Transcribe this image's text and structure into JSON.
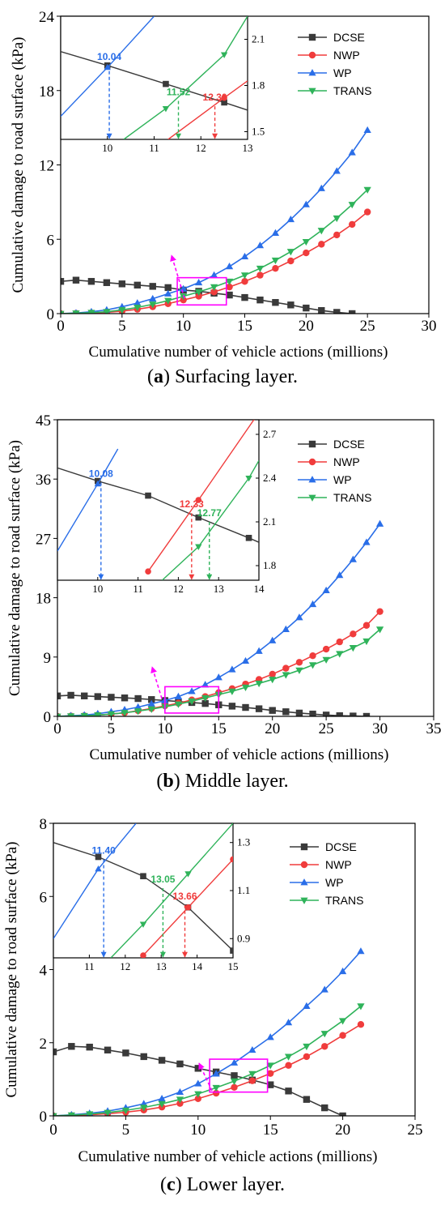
{
  "colors": {
    "DCSE": "#3a3a3a",
    "NWP": "#f03c3c",
    "WP": "#2a6ee8",
    "TRANS": "#2fb35a",
    "highlight": "#ff00ff"
  },
  "chart_data": [
    {
      "type": "line",
      "caption_letter": "a",
      "caption_text": "Surfacing layer.",
      "xlabel": "Cumulative number of vehicle actions (millions)",
      "ylabel": "Cumulative damage to road surface (kPa)",
      "xlim": [
        0,
        30
      ],
      "ylim": [
        0,
        24
      ],
      "xticks": [
        "0",
        "5",
        "10",
        "15",
        "20",
        "25",
        "30"
      ],
      "yticks": [
        "0",
        "6",
        "12",
        "18",
        "24"
      ],
      "legend": [
        "DCSE",
        "NWP",
        "WP",
        "TRANS"
      ],
      "series": [
        {
          "name": "DCSE",
          "marker": "square",
          "x": [
            0,
            1.25,
            2.5,
            3.75,
            5,
            6.25,
            7.5,
            8.75,
            10,
            11.25,
            12.5,
            13.75,
            15,
            16.25,
            17.5,
            18.75,
            20,
            21.25,
            22.5,
            23.75
          ],
          "y": [
            2.6,
            2.7,
            2.6,
            2.5,
            2.4,
            2.3,
            2.2,
            2.1,
            1.9,
            1.8,
            1.65,
            1.5,
            1.3,
            1.1,
            0.9,
            0.7,
            0.45,
            0.25,
            0.1,
            0.0
          ]
        },
        {
          "name": "NWP",
          "marker": "circle",
          "x": [
            0,
            1.25,
            2.5,
            3.75,
            5,
            6.25,
            7.5,
            8.75,
            10,
            11.25,
            12.5,
            13.75,
            15,
            16.25,
            17.5,
            18.75,
            20,
            21.25,
            22.5,
            23.75,
            25
          ],
          "y": [
            0.0,
            0.02,
            0.05,
            0.1,
            0.2,
            0.35,
            0.55,
            0.8,
            1.1,
            1.4,
            1.75,
            2.15,
            2.6,
            3.1,
            3.65,
            4.25,
            4.9,
            5.6,
            6.35,
            7.2,
            8.2
          ]
        },
        {
          "name": "WP",
          "marker": "triangle-up",
          "x": [
            0,
            1.25,
            2.5,
            3.75,
            5,
            6.25,
            7.5,
            8.75,
            10,
            11.25,
            12.5,
            13.75,
            15,
            16.25,
            17.5,
            18.75,
            20,
            21.25,
            22.5,
            23.75,
            25
          ],
          "y": [
            0.0,
            0.05,
            0.15,
            0.3,
            0.55,
            0.85,
            1.2,
            1.6,
            2.0,
            2.5,
            3.1,
            3.8,
            4.6,
            5.5,
            6.5,
            7.6,
            8.8,
            10.1,
            11.5,
            13.0,
            14.8
          ]
        },
        {
          "name": "TRANS",
          "marker": "triangle-down",
          "x": [
            0,
            1.25,
            2.5,
            3.75,
            5,
            6.25,
            7.5,
            8.75,
            10,
            11.25,
            12.5,
            13.75,
            15,
            16.25,
            17.5,
            18.75,
            20,
            21.25,
            22.5,
            23.75,
            25
          ],
          "y": [
            0.0,
            0.03,
            0.08,
            0.15,
            0.3,
            0.5,
            0.75,
            1.05,
            1.4,
            1.75,
            2.15,
            2.6,
            3.1,
            3.65,
            4.3,
            5.0,
            5.8,
            6.7,
            7.7,
            8.8,
            10.0
          ]
        }
      ],
      "highlight_box": {
        "x": [
          9.5,
          13.5
        ],
        "y": [
          0.7,
          2.9
        ]
      },
      "inset": {
        "xlim": [
          9,
          13
        ],
        "ylim": [
          1.45,
          2.25
        ],
        "xticks": [
          "10",
          "11",
          "12",
          "13"
        ],
        "yticks": [
          "1.5",
          "1.8",
          "2.1"
        ],
        "series": [
          {
            "name": "DCSE",
            "x": [
              9,
              10,
              11.25,
              12.5,
              13
            ],
            "y": [
              2.02,
              1.93,
              1.81,
              1.69,
              1.64
            ],
            "marker_x": [
              10,
              11.25,
              12.5
            ]
          },
          {
            "name": "NWP",
            "x": [
              11.3,
              12.5,
              13
            ],
            "y": [
              1.45,
              1.72,
              1.83
            ],
            "marker_x": [
              12.5
            ]
          },
          {
            "name": "WP",
            "x": [
              9,
              10.04,
              11
            ],
            "y": [
              1.6,
              1.93,
              2.25
            ],
            "marker_x": [
              10
            ]
          },
          {
            "name": "TRANS",
            "x": [
              10.35,
              11.25,
              12.5,
              13
            ],
            "y": [
              1.45,
              1.65,
              2.0,
              2.25
            ],
            "marker_x": [
              11.25,
              12.5
            ]
          }
        ],
        "annotations": [
          {
            "text": "10.04",
            "x": 10.04,
            "y": 1.93,
            "color_key": "WP"
          },
          {
            "text": "11.52",
            "x": 11.52,
            "y": 1.7,
            "color_key": "TRANS"
          },
          {
            "text": "12.30",
            "x": 12.3,
            "y": 1.665,
            "color_key": "NWP"
          }
        ]
      }
    },
    {
      "type": "line",
      "caption_letter": "b",
      "caption_text": "Middle layer.",
      "xlabel": "Cumulative number of vehicle actions (millions)",
      "ylabel": "Cumulative damage to road surface (kPa)",
      "xlim": [
        0,
        35
      ],
      "ylim": [
        0,
        45
      ],
      "xticks": [
        "0",
        "5",
        "10",
        "15",
        "20",
        "25",
        "30",
        "35"
      ],
      "yticks": [
        "0",
        "9",
        "18",
        "27",
        "36",
        "45"
      ],
      "legend": [
        "DCSE",
        "NWP",
        "WP",
        "TRANS"
      ],
      "series": [
        {
          "name": "DCSE",
          "marker": "square",
          "x": [
            0,
            1.25,
            2.5,
            3.75,
            5,
            6.25,
            7.5,
            8.75,
            10,
            11.25,
            12.5,
            13.75,
            15,
            16.25,
            17.5,
            18.75,
            20,
            21.25,
            22.5,
            23.75,
            25,
            26.25,
            27.5,
            28.75
          ],
          "y": [
            3.1,
            3.2,
            3.1,
            3.0,
            2.9,
            2.8,
            2.7,
            2.55,
            2.4,
            2.25,
            2.1,
            1.95,
            1.75,
            1.55,
            1.35,
            1.15,
            0.9,
            0.7,
            0.5,
            0.35,
            0.2,
            0.1,
            0.05,
            0.0
          ]
        },
        {
          "name": "NWP",
          "marker": "circle",
          "x": [
            0,
            1.25,
            2.5,
            3.75,
            5,
            6.25,
            7.5,
            8.75,
            10,
            11.25,
            12.5,
            13.75,
            15,
            16.25,
            17.5,
            18.75,
            20,
            21.25,
            22.5,
            23.75,
            25,
            26.25,
            27.5,
            28.75,
            30
          ],
          "y": [
            0.0,
            0.05,
            0.1,
            0.2,
            0.35,
            0.55,
            0.85,
            1.2,
            1.6,
            2.0,
            2.5,
            3.0,
            3.6,
            4.2,
            4.9,
            5.6,
            6.4,
            7.3,
            8.2,
            9.2,
            10.2,
            11.3,
            12.5,
            13.8,
            15.9
          ]
        },
        {
          "name": "WP",
          "marker": "triangle-up",
          "x": [
            0,
            1.25,
            2.5,
            3.75,
            5,
            6.25,
            7.5,
            8.75,
            10,
            11.25,
            12.5,
            13.75,
            15,
            16.25,
            17.5,
            18.75,
            20,
            21.25,
            22.5,
            23.75,
            25,
            26.25,
            27.5,
            28.75,
            30
          ],
          "y": [
            0.0,
            0.1,
            0.2,
            0.4,
            0.7,
            1.0,
            1.4,
            1.9,
            2.4,
            3.0,
            3.8,
            4.8,
            5.9,
            7.1,
            8.4,
            9.9,
            11.5,
            13.2,
            15.0,
            17.0,
            19.1,
            21.4,
            23.8,
            26.4,
            29.2
          ]
        },
        {
          "name": "TRANS",
          "marker": "triangle-down",
          "x": [
            0,
            1.25,
            2.5,
            3.75,
            5,
            6.25,
            7.5,
            8.75,
            10,
            11.25,
            12.5,
            13.75,
            15,
            16.25,
            17.5,
            18.75,
            20,
            21.25,
            22.5,
            23.75,
            25,
            26.25,
            27.5,
            28.75,
            30
          ],
          "y": [
            0.0,
            0.05,
            0.1,
            0.2,
            0.35,
            0.55,
            0.8,
            1.1,
            1.45,
            1.85,
            2.3,
            2.8,
            3.3,
            3.8,
            4.4,
            5.0,
            5.6,
            6.3,
            7.0,
            7.8,
            8.6,
            9.5,
            10.4,
            11.4,
            13.2
          ]
        }
      ],
      "highlight_box": {
        "x": [
          10,
          15
        ],
        "y": [
          0.5,
          4.5
        ]
      },
      "inset": {
        "xlim": [
          9,
          14
        ],
        "ylim": [
          1.7,
          2.8
        ],
        "xticks": [
          "10",
          "11",
          "12",
          "13",
          "14"
        ],
        "yticks": [
          "1.8",
          "2.1",
          "2.4",
          "2.7"
        ],
        "series": [
          {
            "name": "DCSE",
            "x": [
              9,
              10,
              11.25,
              12.5,
              13.75,
              14
            ],
            "y": [
              2.47,
              2.38,
              2.28,
              2.13,
              1.99,
              1.96
            ],
            "marker_x": [
              10,
              11.25,
              12.5,
              13.75
            ]
          },
          {
            "name": "NWP",
            "x": [
              11.25,
              12.5,
              13.75,
              14
            ],
            "y": [
              1.76,
              2.25,
              2.75,
              2.85
            ],
            "marker_x": [
              11.25,
              12.5
            ]
          },
          {
            "name": "WP",
            "x": [
              9,
              10,
              10.5
            ],
            "y": [
              1.9,
              2.36,
              2.6
            ],
            "marker_x": [
              10
            ]
          },
          {
            "name": "TRANS",
            "x": [
              11.6,
              12.5,
              13.75,
              14
            ],
            "y": [
              1.7,
              1.93,
              2.4,
              2.52
            ],
            "marker_x": [
              12.5,
              13.75
            ]
          }
        ],
        "annotations": [
          {
            "text": "10.08",
            "x": 10.08,
            "y": 2.37,
            "color_key": "WP"
          },
          {
            "text": "12.33",
            "x": 12.33,
            "y": 2.16,
            "color_key": "NWP"
          },
          {
            "text": "12.77",
            "x": 12.77,
            "y": 2.1,
            "color_key": "TRANS"
          }
        ]
      }
    },
    {
      "type": "line",
      "caption_letter": "c",
      "caption_text": "Lower layer.",
      "xlabel": "Cumulative number of vehicle actions (millions)",
      "ylabel": "Cumulative damage to road surface (kPa)",
      "xlim": [
        0,
        25
      ],
      "ylim": [
        0,
        8
      ],
      "xticks": [
        "0",
        "5",
        "10",
        "15",
        "20",
        "25"
      ],
      "yticks": [
        "0",
        "2",
        "4",
        "6",
        "8"
      ],
      "legend": [
        "DCSE",
        "NWP",
        "WP",
        "TRANS"
      ],
      "series": [
        {
          "name": "DCSE",
          "marker": "square",
          "x": [
            0,
            1.25,
            2.5,
            3.75,
            5,
            6.25,
            7.5,
            8.75,
            10,
            11.25,
            12.5,
            13.75,
            15,
            16.25,
            17.5,
            18.75,
            20
          ],
          "y": [
            1.75,
            1.9,
            1.88,
            1.8,
            1.72,
            1.62,
            1.52,
            1.42,
            1.3,
            1.2,
            1.1,
            0.98,
            0.85,
            0.68,
            0.45,
            0.22,
            0.0
          ]
        },
        {
          "name": "NWP",
          "marker": "circle",
          "x": [
            0,
            1.25,
            2.5,
            3.75,
            5,
            6.25,
            7.5,
            8.75,
            10,
            11.25,
            12.5,
            13.75,
            15,
            16.25,
            17.5,
            18.75,
            20,
            21.25
          ],
          "y": [
            0.0,
            0.01,
            0.03,
            0.06,
            0.1,
            0.16,
            0.24,
            0.34,
            0.47,
            0.62,
            0.78,
            0.96,
            1.16,
            1.38,
            1.62,
            1.9,
            2.2,
            2.5
          ]
        },
        {
          "name": "WP",
          "marker": "triangle-up",
          "x": [
            0,
            1.25,
            2.5,
            3.75,
            5,
            6.25,
            7.5,
            8.75,
            10,
            11.25,
            12.5,
            13.75,
            15,
            16.25,
            17.5,
            18.75,
            20,
            21.25
          ],
          "y": [
            0.0,
            0.03,
            0.07,
            0.13,
            0.22,
            0.33,
            0.47,
            0.65,
            0.88,
            1.15,
            1.45,
            1.8,
            2.15,
            2.55,
            3.0,
            3.45,
            3.95,
            4.5
          ]
        },
        {
          "name": "TRANS",
          "marker": "triangle-down",
          "x": [
            0,
            1.25,
            2.5,
            3.75,
            5,
            6.25,
            7.5,
            8.75,
            10,
            11.25,
            12.5,
            13.75,
            15,
            16.25,
            17.5,
            18.75,
            20,
            21.25
          ],
          "y": [
            0.0,
            0.02,
            0.05,
            0.09,
            0.15,
            0.23,
            0.33,
            0.45,
            0.6,
            0.77,
            0.95,
            1.15,
            1.38,
            1.62,
            1.9,
            2.25,
            2.6,
            3.0
          ]
        }
      ],
      "highlight_box": {
        "x": [
          10.8,
          14.8
        ],
        "y": [
          0.65,
          1.55
        ]
      },
      "inset": {
        "xlim": [
          10,
          15
        ],
        "ylim": [
          0.82,
          1.38
        ],
        "xticks": [
          "11",
          "12",
          "13",
          "14",
          "15"
        ],
        "yticks": [
          "0.9",
          "1.1",
          "1.3"
        ],
        "series": [
          {
            "name": "DCSE",
            "x": [
              10,
              11.25,
              12.5,
              13.75,
              15
            ],
            "y": [
              1.3,
              1.24,
              1.16,
              1.03,
              0.85
            ],
            "marker_x": [
              11.25,
              12.5,
              13.75,
              15
            ]
          },
          {
            "name": "NWP",
            "x": [
              12.5,
              13.75,
              15
            ],
            "y": [
              0.83,
              1.03,
              1.23
            ],
            "marker_x": [
              12.5,
              13.75,
              15
            ]
          },
          {
            "name": "WP",
            "x": [
              10,
              11.25,
              12.3
            ],
            "y": [
              0.9,
              1.19,
              1.38
            ],
            "marker_x": [
              11.25
            ]
          },
          {
            "name": "TRANS",
            "x": [
              11.6,
              12.5,
              13.75,
              15
            ],
            "y": [
              0.82,
              0.96,
              1.17,
              1.38
            ],
            "marker_x": [
              12.5,
              13.75
            ]
          }
        ],
        "annotations": [
          {
            "text": "11.40",
            "x": 11.4,
            "y": 1.23,
            "color_key": "WP"
          },
          {
            "text": "13.05",
            "x": 13.05,
            "y": 1.11,
            "color_key": "TRANS"
          },
          {
            "text": "13.66",
            "x": 13.66,
            "y": 1.04,
            "color_key": "NWP"
          }
        ]
      }
    }
  ]
}
